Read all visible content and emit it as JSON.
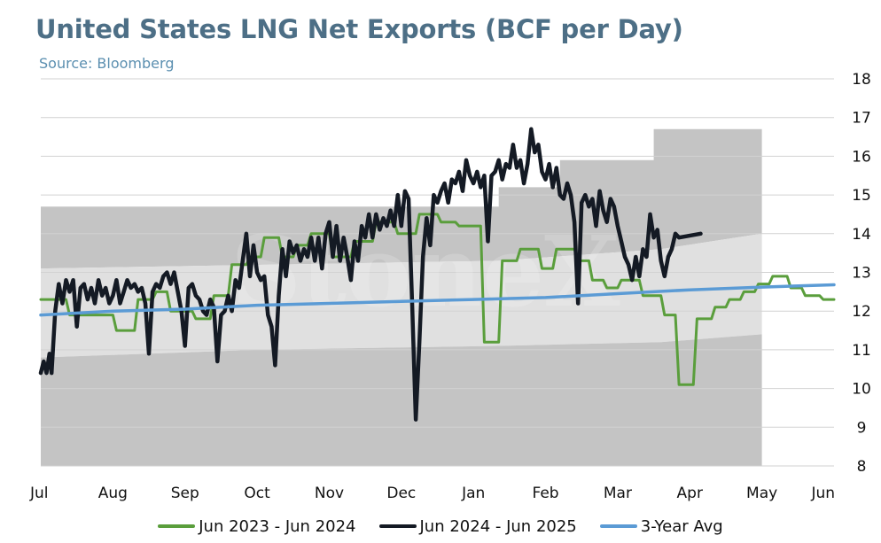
{
  "header": {
    "title": "United States LNG Net Exports (BCF per Day)",
    "subtitle": "Source: Bloomberg"
  },
  "watermark": "StoneX",
  "chart_data": {
    "type": "line",
    "title": "United States LNG Net Exports (BCF per Day)",
    "ylim": [
      8,
      18
    ],
    "yticks": [
      8,
      9,
      10,
      11,
      12,
      13,
      14,
      15,
      16,
      17,
      18
    ],
    "y_axis_position": "right",
    "x_tick_labels": [
      "Jul",
      "Aug",
      "Sep",
      "Oct",
      "Nov",
      "Dec",
      "Jan",
      "Feb",
      "Mar",
      "Apr",
      "May",
      "Jun"
    ],
    "grid": true,
    "legend_position": "bottom",
    "range_band": {
      "max": [
        [
          0,
          14.7
        ],
        [
          6.35,
          14.7
        ],
        [
          6.35,
          15.2
        ],
        [
          7.2,
          15.2
        ],
        [
          7.2,
          15.9
        ],
        [
          8.5,
          15.9
        ],
        [
          8.5,
          16.7
        ],
        [
          10,
          16.7
        ]
      ],
      "upper_mid": [
        [
          0,
          13.1
        ],
        [
          6.35,
          13.3
        ],
        [
          8.6,
          13.6
        ],
        [
          10,
          14.0
        ]
      ],
      "lower_mid": [
        [
          0,
          10.8
        ],
        [
          3,
          11.0
        ],
        [
          6.35,
          11.1
        ],
        [
          8.6,
          11.2
        ],
        [
          10,
          11.4
        ]
      ],
      "min": [
        [
          0,
          8.0
        ],
        [
          10,
          8.0
        ]
      ]
    },
    "series": [
      {
        "name": "Jun 2023 - Jun 2024",
        "color": "#5a9e3c",
        "points": [
          [
            0,
            12.3
          ],
          [
            0.35,
            12.3
          ],
          [
            0.4,
            11.9
          ],
          [
            1.0,
            11.9
          ],
          [
            1.05,
            11.5
          ],
          [
            1.3,
            11.5
          ],
          [
            1.35,
            12.3
          ],
          [
            1.55,
            12.3
          ],
          [
            1.6,
            12.5
          ],
          [
            1.75,
            12.5
          ],
          [
            1.8,
            12.0
          ],
          [
            2.1,
            12.0
          ],
          [
            2.15,
            11.8
          ],
          [
            2.35,
            11.8
          ],
          [
            2.4,
            12.4
          ],
          [
            2.6,
            12.4
          ],
          [
            2.65,
            13.2
          ],
          [
            2.85,
            13.2
          ],
          [
            2.9,
            13.4
          ],
          [
            3.05,
            13.4
          ],
          [
            3.1,
            13.9
          ],
          [
            3.3,
            13.9
          ],
          [
            3.35,
            13.4
          ],
          [
            3.5,
            13.4
          ],
          [
            3.55,
            13.7
          ],
          [
            3.7,
            13.7
          ],
          [
            3.75,
            14.0
          ],
          [
            4.0,
            14.0
          ],
          [
            4.05,
            13.4
          ],
          [
            4.3,
            13.4
          ],
          [
            4.35,
            13.8
          ],
          [
            4.6,
            13.8
          ],
          [
            4.65,
            14.3
          ],
          [
            4.9,
            14.3
          ],
          [
            4.95,
            14.0
          ],
          [
            5.2,
            14.0
          ],
          [
            5.25,
            14.5
          ],
          [
            5.5,
            14.5
          ],
          [
            5.55,
            14.3
          ],
          [
            5.75,
            14.3
          ],
          [
            5.8,
            14.2
          ],
          [
            6.1,
            14.2
          ],
          [
            6.15,
            11.2
          ],
          [
            6.35,
            11.2
          ],
          [
            6.4,
            13.3
          ],
          [
            6.6,
            13.3
          ],
          [
            6.65,
            13.6
          ],
          [
            6.9,
            13.6
          ],
          [
            6.95,
            13.1
          ],
          [
            7.1,
            13.1
          ],
          [
            7.15,
            13.6
          ],
          [
            7.4,
            13.6
          ],
          [
            7.45,
            13.3
          ],
          [
            7.6,
            13.3
          ],
          [
            7.65,
            12.8
          ],
          [
            7.8,
            12.8
          ],
          [
            7.85,
            12.6
          ],
          [
            8.0,
            12.6
          ],
          [
            8.05,
            12.8
          ],
          [
            8.3,
            12.8
          ],
          [
            8.35,
            12.4
          ],
          [
            8.6,
            12.4
          ],
          [
            8.65,
            11.9
          ],
          [
            8.8,
            11.9
          ],
          [
            8.85,
            10.1
          ],
          [
            9.05,
            10.1
          ],
          [
            9.1,
            11.8
          ],
          [
            9.3,
            11.8
          ],
          [
            9.35,
            12.1
          ],
          [
            9.5,
            12.1
          ],
          [
            9.55,
            12.3
          ],
          [
            9.7,
            12.3
          ],
          [
            9.75,
            12.5
          ],
          [
            9.9,
            12.5
          ],
          [
            9.95,
            12.7
          ],
          [
            10.1,
            12.7
          ],
          [
            10.15,
            12.9
          ],
          [
            10.35,
            12.9
          ],
          [
            10.4,
            12.6
          ],
          [
            10.55,
            12.6
          ],
          [
            10.6,
            12.4
          ],
          [
            10.8,
            12.4
          ],
          [
            10.85,
            12.3
          ],
          [
            11.0,
            12.3
          ]
        ]
      },
      {
        "name": "Jun 2024 - Jun 2025",
        "color": "#141a24",
        "points": [
          [
            0,
            10.4
          ],
          [
            0.04,
            10.7
          ],
          [
            0.08,
            10.4
          ],
          [
            0.12,
            10.9
          ],
          [
            0.15,
            10.4
          ],
          [
            0.2,
            12.0
          ],
          [
            0.25,
            12.7
          ],
          [
            0.3,
            12.2
          ],
          [
            0.35,
            12.8
          ],
          [
            0.4,
            12.5
          ],
          [
            0.45,
            12.8
          ],
          [
            0.5,
            11.6
          ],
          [
            0.55,
            12.6
          ],
          [
            0.6,
            12.7
          ],
          [
            0.65,
            12.3
          ],
          [
            0.7,
            12.6
          ],
          [
            0.75,
            12.2
          ],
          [
            0.8,
            12.8
          ],
          [
            0.85,
            12.4
          ],
          [
            0.9,
            12.6
          ],
          [
            0.95,
            12.2
          ],
          [
            1.0,
            12.4
          ],
          [
            1.05,
            12.8
          ],
          [
            1.1,
            12.2
          ],
          [
            1.15,
            12.5
          ],
          [
            1.2,
            12.8
          ],
          [
            1.25,
            12.6
          ],
          [
            1.3,
            12.7
          ],
          [
            1.35,
            12.5
          ],
          [
            1.4,
            12.6
          ],
          [
            1.45,
            12.2
          ],
          [
            1.5,
            10.9
          ],
          [
            1.55,
            12.5
          ],
          [
            1.6,
            12.7
          ],
          [
            1.65,
            12.6
          ],
          [
            1.7,
            12.9
          ],
          [
            1.75,
            13.0
          ],
          [
            1.8,
            12.7
          ],
          [
            1.85,
            13.0
          ],
          [
            1.9,
            12.5
          ],
          [
            1.95,
            12.0
          ],
          [
            2.0,
            11.1
          ],
          [
            2.05,
            12.6
          ],
          [
            2.1,
            12.7
          ],
          [
            2.15,
            12.4
          ],
          [
            2.2,
            12.3
          ],
          [
            2.25,
            12.0
          ],
          [
            2.3,
            11.9
          ],
          [
            2.35,
            12.3
          ],
          [
            2.4,
            12.1
          ],
          [
            2.45,
            10.7
          ],
          [
            2.5,
            11.9
          ],
          [
            2.55,
            12.0
          ],
          [
            2.6,
            12.4
          ],
          [
            2.65,
            12.0
          ],
          [
            2.7,
            12.8
          ],
          [
            2.75,
            12.6
          ],
          [
            2.8,
            13.3
          ],
          [
            2.85,
            14.0
          ],
          [
            2.9,
            12.9
          ],
          [
            2.95,
            13.7
          ],
          [
            3.0,
            13.0
          ],
          [
            3.05,
            12.8
          ],
          [
            3.1,
            12.9
          ],
          [
            3.15,
            11.9
          ],
          [
            3.2,
            11.6
          ],
          [
            3.25,
            10.6
          ],
          [
            3.3,
            12.4
          ],
          [
            3.35,
            13.6
          ],
          [
            3.4,
            12.9
          ],
          [
            3.45,
            13.8
          ],
          [
            3.5,
            13.5
          ],
          [
            3.55,
            13.7
          ],
          [
            3.6,
            13.3
          ],
          [
            3.65,
            13.6
          ],
          [
            3.7,
            13.4
          ],
          [
            3.75,
            13.9
          ],
          [
            3.8,
            13.3
          ],
          [
            3.85,
            13.9
          ],
          [
            3.9,
            13.1
          ],
          [
            3.95,
            14.0
          ],
          [
            4.0,
            14.3
          ],
          [
            4.05,
            13.4
          ],
          [
            4.1,
            14.2
          ],
          [
            4.15,
            13.3
          ],
          [
            4.2,
            13.9
          ],
          [
            4.25,
            13.4
          ],
          [
            4.3,
            12.8
          ],
          [
            4.35,
            13.8
          ],
          [
            4.4,
            13.3
          ],
          [
            4.45,
            14.2
          ],
          [
            4.5,
            13.9
          ],
          [
            4.55,
            14.5
          ],
          [
            4.6,
            13.9
          ],
          [
            4.65,
            14.5
          ],
          [
            4.7,
            14.1
          ],
          [
            4.75,
            14.4
          ],
          [
            4.8,
            14.2
          ],
          [
            4.85,
            14.6
          ],
          [
            4.9,
            14.2
          ],
          [
            4.95,
            15.0
          ],
          [
            5.0,
            14.2
          ],
          [
            5.05,
            15.1
          ],
          [
            5.1,
            14.9
          ],
          [
            5.15,
            12.2
          ],
          [
            5.2,
            9.2
          ],
          [
            5.25,
            11.2
          ],
          [
            5.3,
            13.4
          ],
          [
            5.35,
            14.4
          ],
          [
            5.4,
            13.7
          ],
          [
            5.45,
            15.0
          ],
          [
            5.5,
            14.8
          ],
          [
            5.55,
            15.1
          ],
          [
            5.6,
            15.3
          ],
          [
            5.65,
            14.8
          ],
          [
            5.7,
            15.4
          ],
          [
            5.75,
            15.3
          ],
          [
            5.8,
            15.6
          ],
          [
            5.85,
            15.1
          ],
          [
            5.9,
            15.9
          ],
          [
            5.95,
            15.5
          ],
          [
            6.0,
            15.3
          ],
          [
            6.05,
            15.6
          ],
          [
            6.1,
            15.2
          ],
          [
            6.15,
            15.5
          ],
          [
            6.2,
            13.8
          ],
          [
            6.25,
            15.5
          ],
          [
            6.3,
            15.6
          ],
          [
            6.35,
            15.9
          ],
          [
            6.4,
            15.4
          ],
          [
            6.45,
            15.8
          ],
          [
            6.5,
            15.7
          ],
          [
            6.55,
            16.3
          ],
          [
            6.6,
            15.7
          ],
          [
            6.65,
            15.9
          ],
          [
            6.7,
            15.3
          ],
          [
            6.75,
            15.8
          ],
          [
            6.8,
            16.7
          ],
          [
            6.85,
            16.1
          ],
          [
            6.9,
            16.3
          ],
          [
            6.95,
            15.6
          ],
          [
            7.0,
            15.4
          ],
          [
            7.05,
            15.8
          ],
          [
            7.1,
            15.2
          ],
          [
            7.15,
            15.7
          ],
          [
            7.2,
            15.0
          ],
          [
            7.25,
            14.9
          ],
          [
            7.3,
            15.3
          ],
          [
            7.35,
            15.0
          ],
          [
            7.4,
            14.3
          ],
          [
            7.45,
            12.2
          ],
          [
            7.5,
            14.8
          ],
          [
            7.55,
            15.0
          ],
          [
            7.6,
            14.7
          ],
          [
            7.65,
            14.9
          ],
          [
            7.7,
            14.2
          ],
          [
            7.75,
            15.1
          ],
          [
            7.8,
            14.6
          ],
          [
            7.85,
            14.3
          ],
          [
            7.9,
            14.9
          ],
          [
            7.95,
            14.7
          ],
          [
            8.0,
            14.2
          ],
          [
            8.05,
            13.8
          ],
          [
            8.1,
            13.4
          ],
          [
            8.15,
            13.2
          ],
          [
            8.2,
            12.8
          ],
          [
            8.25,
            13.4
          ],
          [
            8.3,
            12.9
          ],
          [
            8.35,
            13.6
          ],
          [
            8.4,
            13.4
          ],
          [
            8.45,
            14.5
          ],
          [
            8.5,
            13.9
          ],
          [
            8.55,
            14.1
          ],
          [
            8.6,
            13.3
          ],
          [
            8.65,
            12.9
          ],
          [
            8.7,
            13.4
          ],
          [
            8.75,
            13.6
          ],
          [
            8.8,
            14.0
          ],
          [
            8.85,
            13.9
          ],
          [
            9.15,
            14.0
          ]
        ]
      },
      {
        "name": "3-Year Avg",
        "color": "#5b9bd5",
        "points": [
          [
            0,
            11.9
          ],
          [
            1,
            12.0
          ],
          [
            2,
            12.05
          ],
          [
            3,
            12.15
          ],
          [
            4,
            12.2
          ],
          [
            5,
            12.25
          ],
          [
            6,
            12.3
          ],
          [
            7,
            12.35
          ],
          [
            8,
            12.45
          ],
          [
            9,
            12.55
          ],
          [
            10,
            12.62
          ],
          [
            11,
            12.68
          ]
        ]
      }
    ]
  }
}
